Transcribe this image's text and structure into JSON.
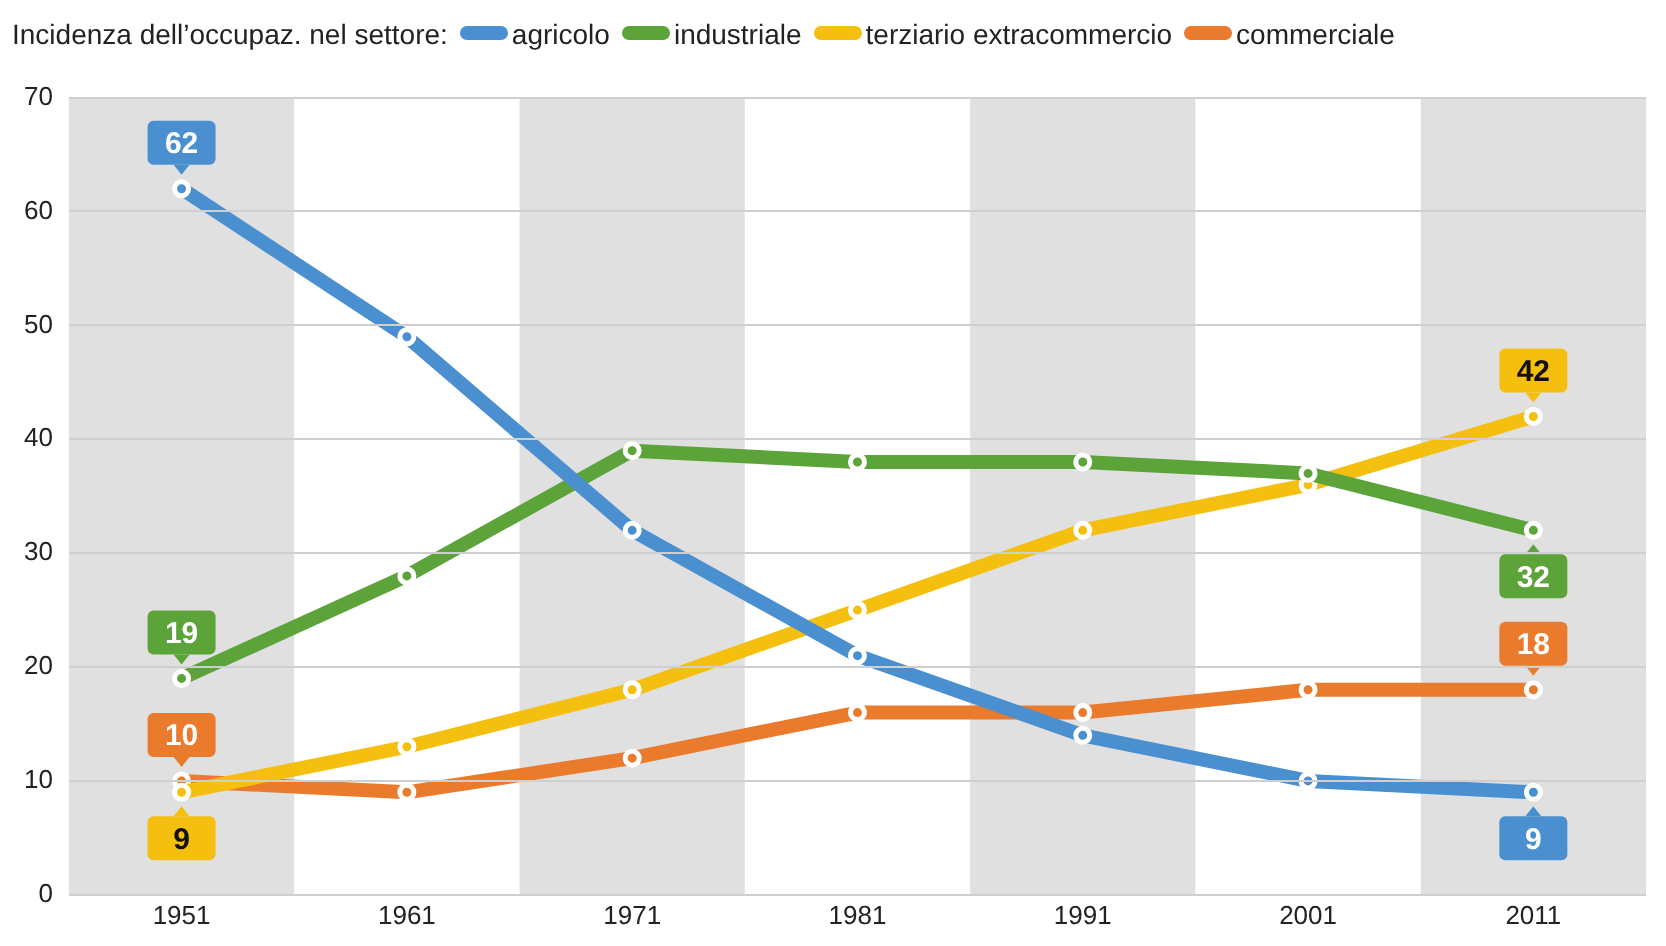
{
  "chart_data": {
    "type": "line",
    "legend_title": "Incidenza dell’occupaz. nel settore:",
    "legend": "top",
    "grid": "y",
    "marker": "circle",
    "line_style": "solid",
    "x": [
      1951,
      1961,
      1971,
      1981,
      1991,
      2001,
      2011
    ],
    "xlim": [
      1946,
      2016
    ],
    "xticks": [
      1951,
      1961,
      1971,
      1981,
      1991,
      2001,
      2011
    ],
    "ylim": [
      0,
      70
    ],
    "yticks": [
      0,
      10,
      20,
      30,
      40,
      50,
      60,
      70
    ],
    "bands": [
      {
        "axis": "x",
        "from": 1946,
        "to": 1956,
        "color": "#e0e0e0"
      },
      {
        "axis": "x",
        "from": 1966,
        "to": 1976,
        "color": "#e0e0e0"
      },
      {
        "axis": "x",
        "from": 1986,
        "to": 1996,
        "color": "#e0e0e0"
      },
      {
        "axis": "x",
        "from": 2006,
        "to": 2016,
        "color": "#e0e0e0"
      }
    ],
    "series": [
      {
        "name": "agricolo",
        "color": "#4a90d0",
        "values": [
          62,
          49,
          32,
          21,
          14,
          10,
          9
        ],
        "value_labels": [
          "62",
          null,
          null,
          null,
          null,
          null,
          "9"
        ]
      },
      {
        "name": "industriale",
        "color": "#5ca33a",
        "values": [
          19,
          28,
          39,
          38,
          38,
          37,
          32
        ],
        "value_labels": [
          "19",
          null,
          null,
          null,
          null,
          null,
          "32"
        ]
      },
      {
        "name": "terziario extracommercio",
        "color": "#f5bf10",
        "values": [
          9,
          13,
          18,
          25,
          32,
          36,
          42
        ],
        "value_labels": [
          "9",
          null,
          null,
          null,
          null,
          null,
          "42"
        ]
      },
      {
        "name": "commerciale",
        "color": "#ea7a2c",
        "values": [
          10,
          9,
          12,
          16,
          16,
          18,
          18
        ],
        "value_labels": [
          "10",
          null,
          null,
          null,
          null,
          null,
          "18"
        ]
      }
    ]
  }
}
